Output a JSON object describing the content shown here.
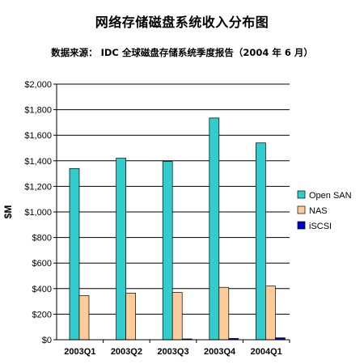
{
  "chart_data": {
    "type": "bar",
    "title": "网络存储磁盘系统收入分布图",
    "subtitle": "数据来源： IDC 全球磁盘存储系统季度报告（2004 年 6 月）",
    "ylabel": "$M",
    "xlabel": "",
    "ylim": [
      0,
      2000
    ],
    "yticks": [
      "$0",
      "$200",
      "$400",
      "$600",
      "$800",
      "$1,000",
      "$1,200",
      "$1,400",
      "$1,600",
      "$1,800",
      "$2,000"
    ],
    "categories": [
      "2003Q1",
      "2003Q2",
      "2003Q3",
      "2003Q4",
      "2004Q1"
    ],
    "series": [
      {
        "name": "Open SAN",
        "color": "#33CCCC",
        "values": [
          1340,
          1420,
          1395,
          1735,
          1540
        ]
      },
      {
        "name": "NAS",
        "color": "#FFCC99",
        "values": [
          345,
          365,
          370,
          410,
          420
        ]
      },
      {
        "name": "iSCSI",
        "color": "#0000CC",
        "values": [
          0,
          0,
          2,
          10,
          15
        ]
      }
    ],
    "grid": true,
    "legend": "right"
  }
}
